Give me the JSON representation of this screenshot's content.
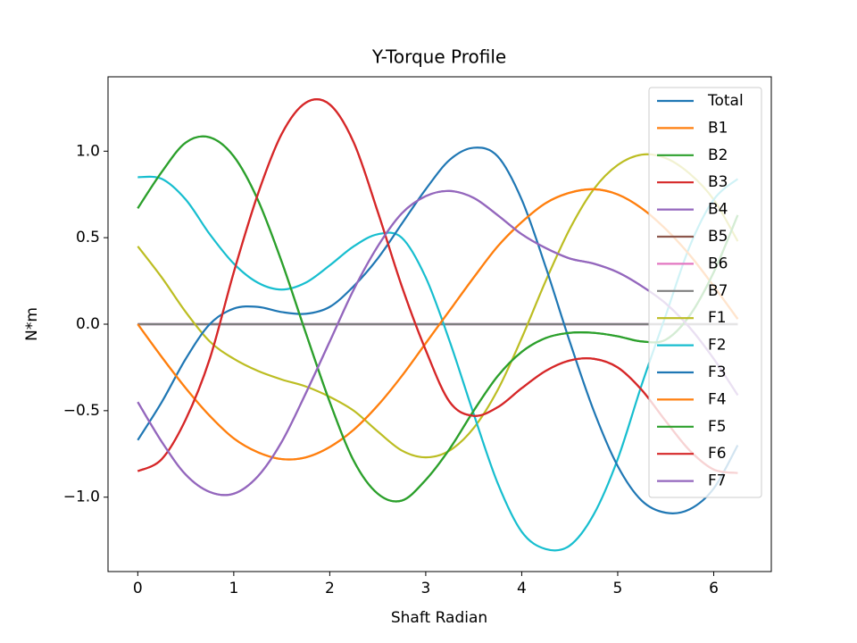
{
  "chart_data": {
    "type": "line",
    "title": "Y-Torque Profile",
    "x_label": "Shaft Radian",
    "y_label": "N*m",
    "x": [
      0,
      0.25,
      0.5,
      0.75,
      1.0,
      1.25,
      1.5,
      1.75,
      2.0,
      2.25,
      2.5,
      2.75,
      3.0,
      3.25,
      3.5,
      3.75,
      4.0,
      4.25,
      4.5,
      4.75,
      5.0,
      5.25,
      5.5,
      5.75,
      6.0,
      6.25
    ],
    "xlim": [
      -0.31,
      6.6
    ],
    "xticks": [
      0,
      1,
      2,
      3,
      4,
      5,
      6
    ],
    "ylim": [
      -1.43,
      1.43
    ],
    "yticks": [
      {
        "value": -1.0,
        "label": "−1.0"
      },
      {
        "value": -0.5,
        "label": "−0.5"
      },
      {
        "value": 0.0,
        "label": "0.0"
      },
      {
        "value": 0.5,
        "label": "0.5"
      },
      {
        "value": 1.0,
        "label": "1.0"
      }
    ],
    "grid": false,
    "legend": "upper right",
    "series": [
      {
        "name": "Total",
        "color": "#1f77b4",
        "values": [
          0,
          0,
          0,
          0,
          0,
          0,
          0,
          0,
          0,
          0,
          0,
          0,
          0,
          0,
          0,
          0,
          0,
          0,
          0,
          0,
          0,
          0,
          0,
          0,
          0,
          0
        ]
      },
      {
        "name": "B1",
        "color": "#ff7f0e",
        "values": [
          0,
          -0.19,
          -0.37,
          -0.53,
          -0.66,
          -0.74,
          -0.78,
          -0.77,
          -0.71,
          -0.61,
          -0.47,
          -0.3,
          -0.11,
          0.08,
          0.27,
          0.45,
          0.59,
          0.7,
          0.76,
          0.78,
          0.75,
          0.67,
          0.55,
          0.4,
          0.22,
          0.03
        ]
      },
      {
        "name": "B2",
        "color": "#2ca02c",
        "values": [
          0.67,
          0.88,
          1.05,
          1.08,
          0.97,
          0.72,
          0.36,
          -0.05,
          -0.45,
          -0.79,
          -0.98,
          -1.02,
          -0.9,
          -0.72,
          -0.5,
          -0.3,
          -0.16,
          -0.08,
          -0.05,
          -0.05,
          -0.07,
          -0.1,
          -0.09,
          0.05,
          0.3,
          0.63
        ]
      },
      {
        "name": "B3",
        "color": "#d62728",
        "values": [
          -0.85,
          -0.78,
          -0.55,
          -0.2,
          0.3,
          0.75,
          1.1,
          1.28,
          1.27,
          1.05,
          0.65,
          0.22,
          -0.15,
          -0.45,
          -0.53,
          -0.48,
          -0.37,
          -0.27,
          -0.21,
          -0.2,
          -0.25,
          -0.38,
          -0.56,
          -0.73,
          -0.84,
          -0.86
        ]
      },
      {
        "name": "B4",
        "color": "#9467bd",
        "values": [
          -0.45,
          -0.68,
          -0.87,
          -0.97,
          -0.98,
          -0.88,
          -0.68,
          -0.4,
          -0.1,
          0.2,
          0.45,
          0.64,
          0.74,
          0.77,
          0.73,
          0.63,
          0.52,
          0.44,
          0.38,
          0.35,
          0.3,
          0.22,
          0.12,
          -0.02,
          -0.2,
          -0.41
        ]
      },
      {
        "name": "B5",
        "color": "#8c564b",
        "values": [
          0,
          0,
          0,
          0,
          0,
          0,
          0,
          0,
          0,
          0,
          0,
          0,
          0,
          0,
          0,
          0,
          0,
          0,
          0,
          0,
          0,
          0,
          0,
          0,
          0,
          0
        ]
      },
      {
        "name": "B6",
        "color": "#e377c2",
        "values": [
          0,
          0,
          0,
          0,
          0,
          0,
          0,
          0,
          0,
          0,
          0,
          0,
          0,
          0,
          0,
          0,
          0,
          0,
          0,
          0,
          0,
          0,
          0,
          0,
          0,
          0
        ]
      },
      {
        "name": "B7",
        "color": "#7f7f7f",
        "values": [
          0,
          0,
          0,
          0,
          0,
          0,
          0,
          0,
          0,
          0,
          0,
          0,
          0,
          0,
          0,
          0,
          0,
          0,
          0,
          0,
          0,
          0,
          0,
          0,
          0,
          0
        ]
      },
      {
        "name": "F1",
        "color": "#bcbd22",
        "values": [
          0.45,
          0.27,
          0.07,
          -0.1,
          -0.2,
          -0.27,
          -0.32,
          -0.36,
          -0.42,
          -0.5,
          -0.62,
          -0.73,
          -0.77,
          -0.73,
          -0.6,
          -0.38,
          -0.08,
          0.25,
          0.55,
          0.78,
          0.92,
          0.98,
          0.96,
          0.87,
          0.72,
          0.48
        ]
      },
      {
        "name": "F2",
        "color": "#17becf",
        "values": [
          0.85,
          0.84,
          0.72,
          0.52,
          0.35,
          0.24,
          0.2,
          0.24,
          0.34,
          0.45,
          0.52,
          0.5,
          0.27,
          -0.1,
          -0.52,
          -0.92,
          -1.2,
          -1.3,
          -1.28,
          -1.1,
          -0.78,
          -0.35,
          0.05,
          0.45,
          0.72,
          0.84
        ]
      },
      {
        "name": "F3",
        "color": "#1f77b4",
        "values": [
          -0.67,
          -0.45,
          -0.2,
          0.0,
          0.09,
          0.1,
          0.07,
          0.06,
          0.1,
          0.22,
          0.38,
          0.58,
          0.78,
          0.95,
          1.02,
          0.97,
          0.72,
          0.33,
          -0.1,
          -0.5,
          -0.82,
          -1.02,
          -1.09,
          -1.07,
          -0.95,
          -0.7
        ]
      },
      {
        "name": "F4",
        "color": "#ff7f0e",
        "values": [
          0,
          -0.19,
          -0.37,
          -0.53,
          -0.66,
          -0.74,
          -0.78,
          -0.77,
          -0.71,
          -0.61,
          -0.47,
          -0.3,
          -0.11,
          0.08,
          0.27,
          0.45,
          0.59,
          0.7,
          0.76,
          0.78,
          0.75,
          0.67,
          0.55,
          0.4,
          0.22,
          0.03
        ]
      },
      {
        "name": "F5",
        "color": "#2ca02c",
        "values": [
          0.67,
          0.88,
          1.05,
          1.08,
          0.97,
          0.72,
          0.36,
          -0.05,
          -0.45,
          -0.79,
          -0.98,
          -1.02,
          -0.9,
          -0.72,
          -0.5,
          -0.3,
          -0.16,
          -0.08,
          -0.05,
          -0.05,
          -0.07,
          -0.1,
          -0.09,
          0.05,
          0.3,
          0.63
        ]
      },
      {
        "name": "F6",
        "color": "#d62728",
        "values": [
          -0.85,
          -0.78,
          -0.55,
          -0.2,
          0.3,
          0.75,
          1.1,
          1.28,
          1.27,
          1.05,
          0.65,
          0.22,
          -0.15,
          -0.45,
          -0.53,
          -0.48,
          -0.37,
          -0.27,
          -0.21,
          -0.2,
          -0.25,
          -0.38,
          -0.56,
          -0.73,
          -0.84,
          -0.86
        ]
      },
      {
        "name": "F7",
        "color": "#9467bd",
        "values": [
          -0.45,
          -0.68,
          -0.87,
          -0.97,
          -0.98,
          -0.88,
          -0.68,
          -0.4,
          -0.1,
          0.2,
          0.45,
          0.64,
          0.74,
          0.77,
          0.73,
          0.63,
          0.52,
          0.44,
          0.38,
          0.35,
          0.3,
          0.22,
          0.12,
          -0.02,
          -0.2,
          -0.41
        ]
      }
    ]
  }
}
